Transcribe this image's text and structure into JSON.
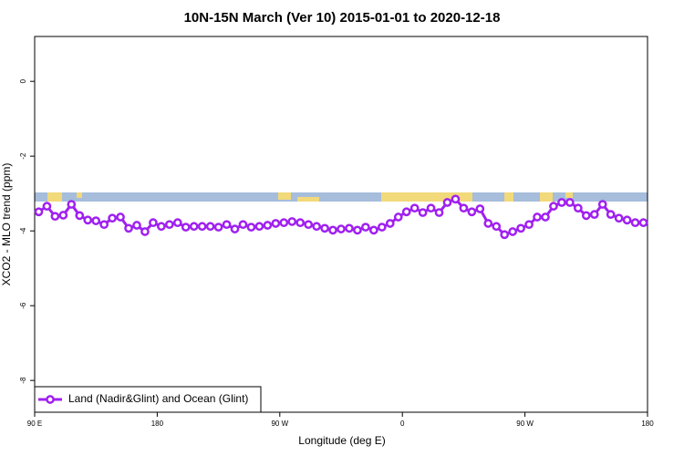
{
  "chart_data": {
    "type": "line",
    "title": "10N-15N March (Ver 10)   2015-01-01 to 2020-12-18",
    "x_label": "Longitude (deg E)",
    "y_label": "XCO2 - MLO trend (ppm)",
    "xlim": [
      90,
      540
    ],
    "xticks": [
      {
        "value": 90,
        "label": "90 E"
      },
      {
        "value": 180,
        "label": "180"
      },
      {
        "value": 270,
        "label": "90 W"
      },
      {
        "value": 360,
        "label": "0"
      },
      {
        "value": 450,
        "label": "90 W"
      },
      {
        "value": 540,
        "label": "180"
      }
    ],
    "ylim": [
      -8.85,
      1.2
    ],
    "yticks": [
      0,
      -2,
      -4,
      -6,
      -8
    ],
    "legend": "bottom-left",
    "x": [
      93,
      99,
      105,
      111,
      117,
      123,
      129,
      135,
      141,
      147,
      153,
      159,
      165,
      171,
      177,
      183,
      189,
      195,
      201,
      207,
      213,
      219,
      225,
      231,
      237,
      243,
      249,
      255,
      261,
      267,
      273,
      279,
      285,
      291,
      297,
      303,
      309,
      315,
      321,
      327,
      333,
      339,
      345,
      351,
      357,
      363,
      369,
      375,
      381,
      387,
      393,
      399,
      405,
      411,
      417,
      423,
      429,
      435,
      441,
      447,
      453,
      459,
      465,
      471,
      477,
      483,
      489,
      495,
      501,
      507,
      513,
      519,
      525,
      531,
      537
    ],
    "series": [
      {
        "name": "Land (Nadir&Glint) and Ocean (Glint)",
        "color": "#a020f0",
        "values": [
          -3.49,
          -3.34,
          -3.61,
          -3.58,
          -3.29,
          -3.59,
          -3.71,
          -3.73,
          -3.83,
          -3.66,
          -3.63,
          -3.93,
          -3.85,
          -4.02,
          -3.78,
          -3.88,
          -3.83,
          -3.78,
          -3.9,
          -3.88,
          -3.88,
          -3.88,
          -3.9,
          -3.83,
          -3.95,
          -3.83,
          -3.9,
          -3.88,
          -3.85,
          -3.8,
          -3.78,
          -3.75,
          -3.78,
          -3.83,
          -3.88,
          -3.93,
          -3.98,
          -3.95,
          -3.93,
          -3.98,
          -3.9,
          -3.98,
          -3.9,
          -3.8,
          -3.63,
          -3.49,
          -3.39,
          -3.51,
          -3.39,
          -3.51,
          -3.24,
          -3.15,
          -3.39,
          -3.49,
          -3.41,
          -3.8,
          -3.88,
          -4.1,
          -4.02,
          -3.93,
          -3.83,
          -3.63,
          -3.63,
          -3.34,
          -3.24,
          -3.24,
          -3.39,
          -3.59,
          -3.56,
          -3.29,
          -3.56,
          -3.66,
          -3.71,
          -3.78,
          -3.78
        ]
      }
    ]
  }
}
